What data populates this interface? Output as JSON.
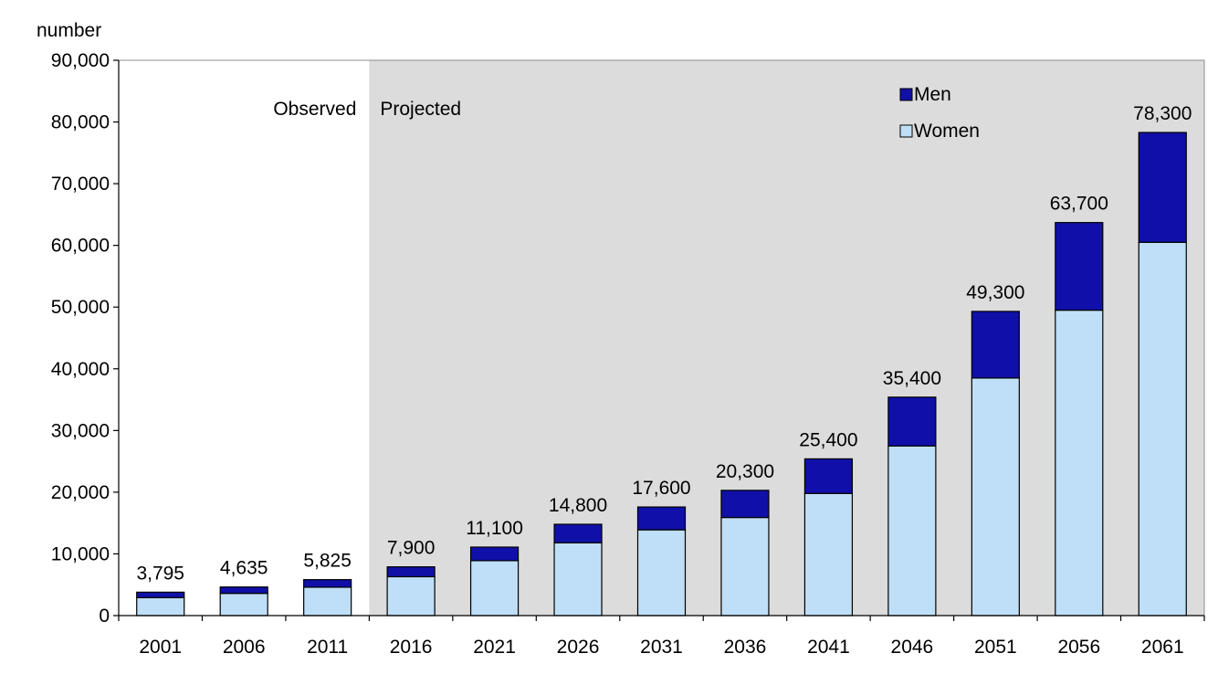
{
  "chart_data": {
    "type": "bar",
    "stacked": true,
    "ylabel": "number",
    "ylim": [
      0,
      90000
    ],
    "yticks": [
      0,
      10000,
      20000,
      30000,
      40000,
      50000,
      60000,
      70000,
      80000,
      90000
    ],
    "ytick_labels": [
      "0",
      "10,000",
      "20,000",
      "30,000",
      "40,000",
      "50,000",
      "60,000",
      "70,000",
      "80,000",
      "90,000"
    ],
    "categories": [
      "2001",
      "2006",
      "2011",
      "2016",
      "2021",
      "2026",
      "2031",
      "2036",
      "2041",
      "2046",
      "2051",
      "2056",
      "2061"
    ],
    "series": [
      {
        "name": "Women",
        "color": "#bfdff8",
        "values": [
          2900,
          3600,
          4600,
          6300,
          8900,
          11800,
          13900,
          15900,
          19800,
          27500,
          38500,
          49500,
          60500
        ]
      },
      {
        "name": "Men",
        "color": "#1010a8",
        "values": [
          895,
          1035,
          1225,
          1600,
          2200,
          3000,
          3700,
          4400,
          5600,
          7900,
          10800,
          14200,
          17800
        ]
      }
    ],
    "totals": [
      3795,
      4635,
      5825,
      7900,
      11100,
      14800,
      17600,
      20300,
      25400,
      35400,
      49300,
      63700,
      78300
    ],
    "total_labels": [
      "3,795",
      "4,635",
      "5,825",
      "7,900",
      "11,100",
      "14,800",
      "17,600",
      "20,300",
      "25,400",
      "35,400",
      "49,300",
      "63,700",
      "78,300"
    ],
    "regions": {
      "observed_label": "Observed",
      "projected_label": "Projected",
      "projected_from_index": 3
    },
    "legend": {
      "position": "top-right",
      "entries": [
        "Men",
        "Women"
      ]
    },
    "colors": {
      "projected_background": "#dcdcdc",
      "axis": "#000000"
    },
    "grid": false
  }
}
